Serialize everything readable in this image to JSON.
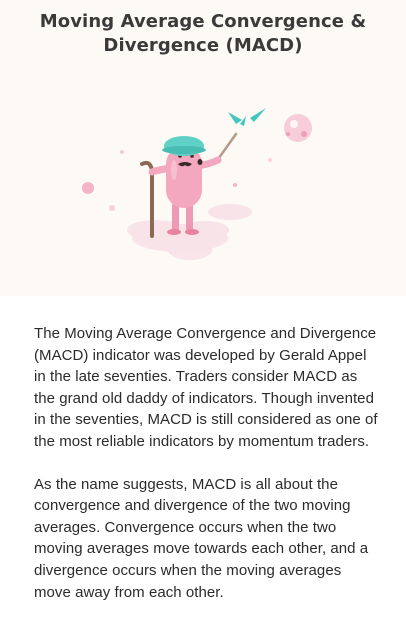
{
  "article": {
    "title": "Moving Average Convergence & Divergence (MACD)",
    "paragraphs": [
      "The Moving Average Convergence and Divergence (MACD) indicator was developed by Gerald Appel in the late seventies. Traders consider MACD as the grand old daddy of indicators. Though invented in the seventies, MACD is still considered as one of the most reliable indicators by momentum traders.",
      "As the name suggests, MACD is all about the convergence and divergence of the two moving averages. Convergence occurs when the two moving averages move towards each other, and a divergence occurs when the moving averages move away from each other."
    ]
  },
  "illustration": {
    "icon": "old-man-with-cane-illustration",
    "colors": {
      "body": "#f3a8bf",
      "hat": "#5ed0c6",
      "mustache": "#3b2a2a",
      "cane": "#8b6a55",
      "ground": "#f7dde6",
      "dots": "#f5b4c8"
    }
  }
}
